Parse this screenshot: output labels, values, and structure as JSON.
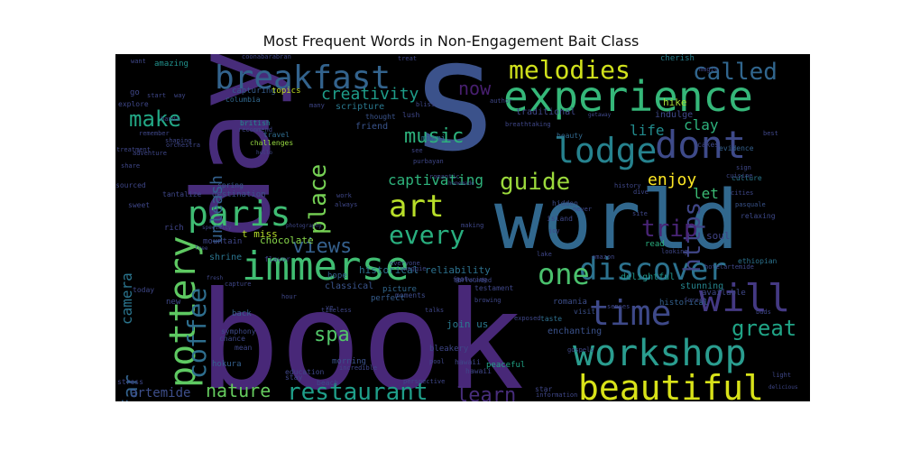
{
  "chart_data": {
    "type": "wordcloud",
    "title": "Most Frequent Words in Non-Engagement Bait Class",
    "background": "#000000",
    "words": [
      {
        "text": "book",
        "color": "#482878"
      },
      {
        "text": "days",
        "color": "#472c7a"
      },
      {
        "text": "s",
        "color": "#3b528b"
      },
      {
        "text": "world",
        "color": "#31688e"
      },
      {
        "text": "experience",
        "color": "#35b779"
      },
      {
        "text": "immerse",
        "color": "#40bd72"
      },
      {
        "text": "breakfast",
        "color": "#33638d"
      },
      {
        "text": "pottery",
        "color": "#5ec962"
      },
      {
        "text": "workshop",
        "color": "#2a9d8f"
      },
      {
        "text": "beautiful",
        "color": "#d8e219"
      },
      {
        "text": "lodge",
        "color": "#26828e"
      },
      {
        "text": "dont",
        "color": "#3e4a89"
      },
      {
        "text": "paris",
        "color": "#3fbc73"
      },
      {
        "text": "will",
        "color": "#443983"
      },
      {
        "text": "time",
        "color": "#3e4989"
      },
      {
        "text": "discover",
        "color": "#2c728e"
      },
      {
        "text": "coffee",
        "color": "#2e6e8e"
      },
      {
        "text": "one",
        "color": "#4ac16d"
      },
      {
        "text": "art",
        "color": "#b8de29"
      },
      {
        "text": "every",
        "color": "#29af7f"
      },
      {
        "text": "melodies",
        "color": "#d0e11c"
      },
      {
        "text": "called",
        "color": "#31668e"
      },
      {
        "text": "restaurant",
        "color": "#1f9e89"
      },
      {
        "text": "great",
        "color": "#20a486"
      },
      {
        "text": "guide",
        "color": "#9bd93c"
      },
      {
        "text": "place",
        "color": "#75d054"
      },
      {
        "text": "https",
        "color": "#404688"
      },
      {
        "text": "trip",
        "color": "#482475"
      },
      {
        "text": "make",
        "color": "#22a785"
      },
      {
        "text": "far",
        "color": "#33628d"
      },
      {
        "text": "views",
        "color": "#35608d"
      },
      {
        "text": "music",
        "color": "#2db27d"
      },
      {
        "text": "learn",
        "color": "#472d7b"
      },
      {
        "text": "spa",
        "color": "#52c569"
      },
      {
        "text": "now",
        "color": "#481f70"
      },
      {
        "text": "nature",
        "color": "#65cb5e"
      },
      {
        "text": "creativity",
        "color": "#1e9c89"
      },
      {
        "text": "enjoy",
        "color": "#fde725"
      },
      {
        "text": "unleash",
        "color": "#34618d"
      },
      {
        "text": "captivating",
        "color": "#2eb37c"
      },
      {
        "text": "camera",
        "color": "#2b758e"
      },
      {
        "text": "life",
        "color": "#228b8d"
      },
      {
        "text": "clay",
        "color": "#2db27d"
      },
      {
        "text": "let",
        "color": "#3bbb75"
      },
      {
        "text": "artemide",
        "color": "#3d4e8a"
      },
      {
        "text": "historical reliability",
        "color": "#2c718e"
      },
      {
        "text": "chocolate",
        "color": "#86d549"
      },
      {
        "text": "t miss",
        "color": "#b5de2b"
      },
      {
        "text": "join us",
        "color": "#2a788e"
      },
      {
        "text": "hike",
        "color": "#a5db36"
      },
      {
        "text": "indulge",
        "color": "#3f4889"
      },
      {
        "text": "amazing",
        "color": "#21918c"
      },
      {
        "text": "cherish",
        "color": "#277f8e"
      },
      {
        "text": "capturing",
        "color": "#365c8d"
      },
      {
        "text": "topics",
        "color": "#c2df23"
      },
      {
        "text": "traditional",
        "color": "#3f4788"
      },
      {
        "text": "scripture",
        "color": "#2a788e"
      },
      {
        "text": "friend",
        "color": "#3a548c"
      },
      {
        "text": "british",
        "color": "#23898e"
      },
      {
        "text": "challenges",
        "color": "#95d840"
      },
      {
        "text": "travel",
        "color": "#2f6c8e"
      },
      {
        "text": "destination",
        "color": "#3c4f8a"
      },
      {
        "text": "spring",
        "color": "#375a8c"
      },
      {
        "text": "hope",
        "color": "#355f8d"
      },
      {
        "text": "mountain",
        "color": "#3f4788"
      },
      {
        "text": "rich",
        "color": "#404588"
      },
      {
        "text": "shrine",
        "color": "#2b748e"
      },
      {
        "text": "flavor",
        "color": "#414287"
      },
      {
        "text": "classical",
        "color": "#3a548c"
      },
      {
        "text": "picture",
        "color": "#31678e"
      },
      {
        "text": "moments",
        "color": "#3e4c8a"
      },
      {
        "text": "perfect",
        "color": "#365d8d"
      },
      {
        "text": "island",
        "color": "#3f4889"
      },
      {
        "text": "read",
        "color": "#29af7f"
      },
      {
        "text": "stunning",
        "color": "#25858e"
      },
      {
        "text": "delightful",
        "color": "#1f958b"
      },
      {
        "text": "enchanting",
        "color": "#3b528b"
      },
      {
        "text": "romania",
        "color": "#3d4e8a"
      },
      {
        "text": "visit",
        "color": "#3c508b"
      },
      {
        "text": "available",
        "color": "#3f4889"
      },
      {
        "text": "historical",
        "color": "#34618d"
      },
      {
        "text": "ethiopian",
        "color": "#2c738e"
      },
      {
        "text": "soul",
        "color": "#414487"
      },
      {
        "text": "relaxing",
        "color": "#3e4989"
      },
      {
        "text": "pasquale",
        "color": "#3a548c"
      },
      {
        "text": "culture",
        "color": "#2a788e"
      },
      {
        "text": "evidence",
        "color": "#34618d"
      },
      {
        "text": "cakes",
        "color": "#3f4788"
      },
      {
        "text": "miami",
        "color": "#2a788e"
      },
      {
        "text": "thought",
        "color": "#3a548c"
      },
      {
        "text": "beauty",
        "color": "#31688e"
      },
      {
        "text": "hidden",
        "color": "#3d4e8a"
      },
      {
        "text": "site",
        "color": "#3f4889"
      },
      {
        "text": "taste",
        "color": "#2e6f8e"
      },
      {
        "text": "testament",
        "color": "#3f4788"
      },
      {
        "text": "peaceful",
        "color": "#20a386"
      },
      {
        "text": "bleakery",
        "color": "#3f4788"
      },
      {
        "text": "morning",
        "color": "#3b528b"
      },
      {
        "text": "hokura",
        "color": "#34608d"
      },
      {
        "text": "symphony",
        "color": "#3e4989"
      },
      {
        "text": "chance",
        "color": "#3f4788"
      },
      {
        "text": "mean",
        "color": "#3f4788"
      },
      {
        "text": "back",
        "color": "#35608d"
      },
      {
        "text": "new",
        "color": "#3e4989"
      },
      {
        "text": "today",
        "color": "#3f4788"
      },
      {
        "text": "stress",
        "color": "#3f4788"
      },
      {
        "text": "hour",
        "color": "#3f4788"
      },
      {
        "text": "education",
        "color": "#3f4788"
      },
      {
        "text": "beach",
        "color": "#3f4788"
      },
      {
        "text": "stay",
        "color": "#3f4788"
      },
      {
        "text": "remember",
        "color": "#3f4788"
      },
      {
        "text": "orchestra",
        "color": "#3f4788"
      },
      {
        "text": "columbia",
        "color": "#31688e"
      },
      {
        "text": "explore",
        "color": "#3f4788"
      },
      {
        "text": "start",
        "color": "#3f4788"
      },
      {
        "text": "way",
        "color": "#3f4788"
      },
      {
        "text": "hands",
        "color": "#3f4788"
      },
      {
        "text": "shaping",
        "color": "#3f4788"
      },
      {
        "text": "sourced",
        "color": "#3f4788"
      },
      {
        "text": "sweet",
        "color": "#3f4788"
      },
      {
        "text": "tantalize",
        "color": "#3f4788"
      },
      {
        "text": "share",
        "color": "#3f4788"
      },
      {
        "text": "adventure",
        "color": "#3f4788"
      },
      {
        "text": "treatment",
        "color": "#3f4788"
      },
      {
        "text": "recommend",
        "color": "#3f4788"
      },
      {
        "text": "many",
        "color": "#3f4788"
      },
      {
        "text": "lush",
        "color": "#3f4788"
      },
      {
        "text": "bliss",
        "color": "#3f4788"
      },
      {
        "text": "author",
        "color": "#3f4788"
      },
      {
        "text": "breathtaking",
        "color": "#3f4788"
      },
      {
        "text": "getaway",
        "color": "#3f4788"
      },
      {
        "text": "magic",
        "color": "#3f4788"
      },
      {
        "text": "treat",
        "color": "#3f4788"
      },
      {
        "text": "romantic",
        "color": "#3f4788"
      },
      {
        "text": "homemade",
        "color": "#3f4788"
      },
      {
        "text": "purbayan",
        "color": "#3f4788"
      },
      {
        "text": "see",
        "color": "#3f4788"
      },
      {
        "text": "never",
        "color": "#3f4788"
      },
      {
        "text": "dive",
        "color": "#3f4788"
      },
      {
        "text": "history",
        "color": "#3f4788"
      },
      {
        "text": "cities",
        "color": "#3f4788"
      },
      {
        "text": "sign",
        "color": "#3f4788"
      },
      {
        "text": "cuisine",
        "color": "#3f4788"
      },
      {
        "text": "best",
        "color": "#3f4788"
      },
      {
        "text": "hotelartemide",
        "color": "#3f4788"
      },
      {
        "text": "looking",
        "color": "#3f4788"
      },
      {
        "text": "amazon",
        "color": "#3f4788"
      },
      {
        "text": "lake",
        "color": "#3f4788"
      },
      {
        "text": "featuring",
        "color": "#3f4788"
      },
      {
        "text": "surrounded",
        "color": "#3f4788"
      },
      {
        "text": "got",
        "color": "#3f4788"
      },
      {
        "text": "browing",
        "color": "#3f4788"
      },
      {
        "text": "talks",
        "color": "#3f4788"
      },
      {
        "text": "hawaii",
        "color": "#3f4788"
      },
      {
        "text": "gospels",
        "color": "#3f4788"
      },
      {
        "text": "senses",
        "color": "#3f4788"
      },
      {
        "text": "forest",
        "color": "#3f4788"
      },
      {
        "text": "buds",
        "color": "#3f4788"
      },
      {
        "text": "light",
        "color": "#3f4788"
      },
      {
        "text": "delicious",
        "color": "#3f4788"
      },
      {
        "text": "star",
        "color": "#3f4788"
      },
      {
        "text": "information",
        "color": "#3f4788"
      },
      {
        "text": "perspective",
        "color": "#3f4788"
      },
      {
        "text": "timeless",
        "color": "#3f4788"
      },
      {
        "text": "incredible",
        "color": "#3f4788"
      },
      {
        "text": "always",
        "color": "#3f4788"
      },
      {
        "text": "work",
        "color": "#3f4788"
      },
      {
        "text": "photography",
        "color": "#3f4788"
      },
      {
        "text": "making",
        "color": "#3f4788"
      },
      {
        "text": "everyone",
        "color": "#3f4788"
      },
      {
        "text": "swaggie",
        "color": "#3f4788"
      },
      {
        "text": "ve",
        "color": "#3f4788"
      },
      {
        "text": "go",
        "color": "#3f4788"
      },
      {
        "text": "want",
        "color": "#3f4788"
      },
      {
        "text": "hawaii",
        "color": "#3f4788"
      },
      {
        "text": "coonabarabran",
        "color": "#3f4788"
      },
      {
        "text": "exposed",
        "color": "#3f4788"
      },
      {
        "text": "joy",
        "color": "#3f4788"
      },
      {
        "text": "capture",
        "color": "#3f4788"
      },
      {
        "text": "fresh",
        "color": "#3f4788"
      },
      {
        "text": "specialty",
        "color": "#3f4788"
      },
      {
        "text": "pool",
        "color": "#3f4788"
      },
      {
        "text": "hello",
        "color": "#3f4788"
      },
      {
        "text": "free",
        "color": "#3f4788"
      }
    ]
  }
}
